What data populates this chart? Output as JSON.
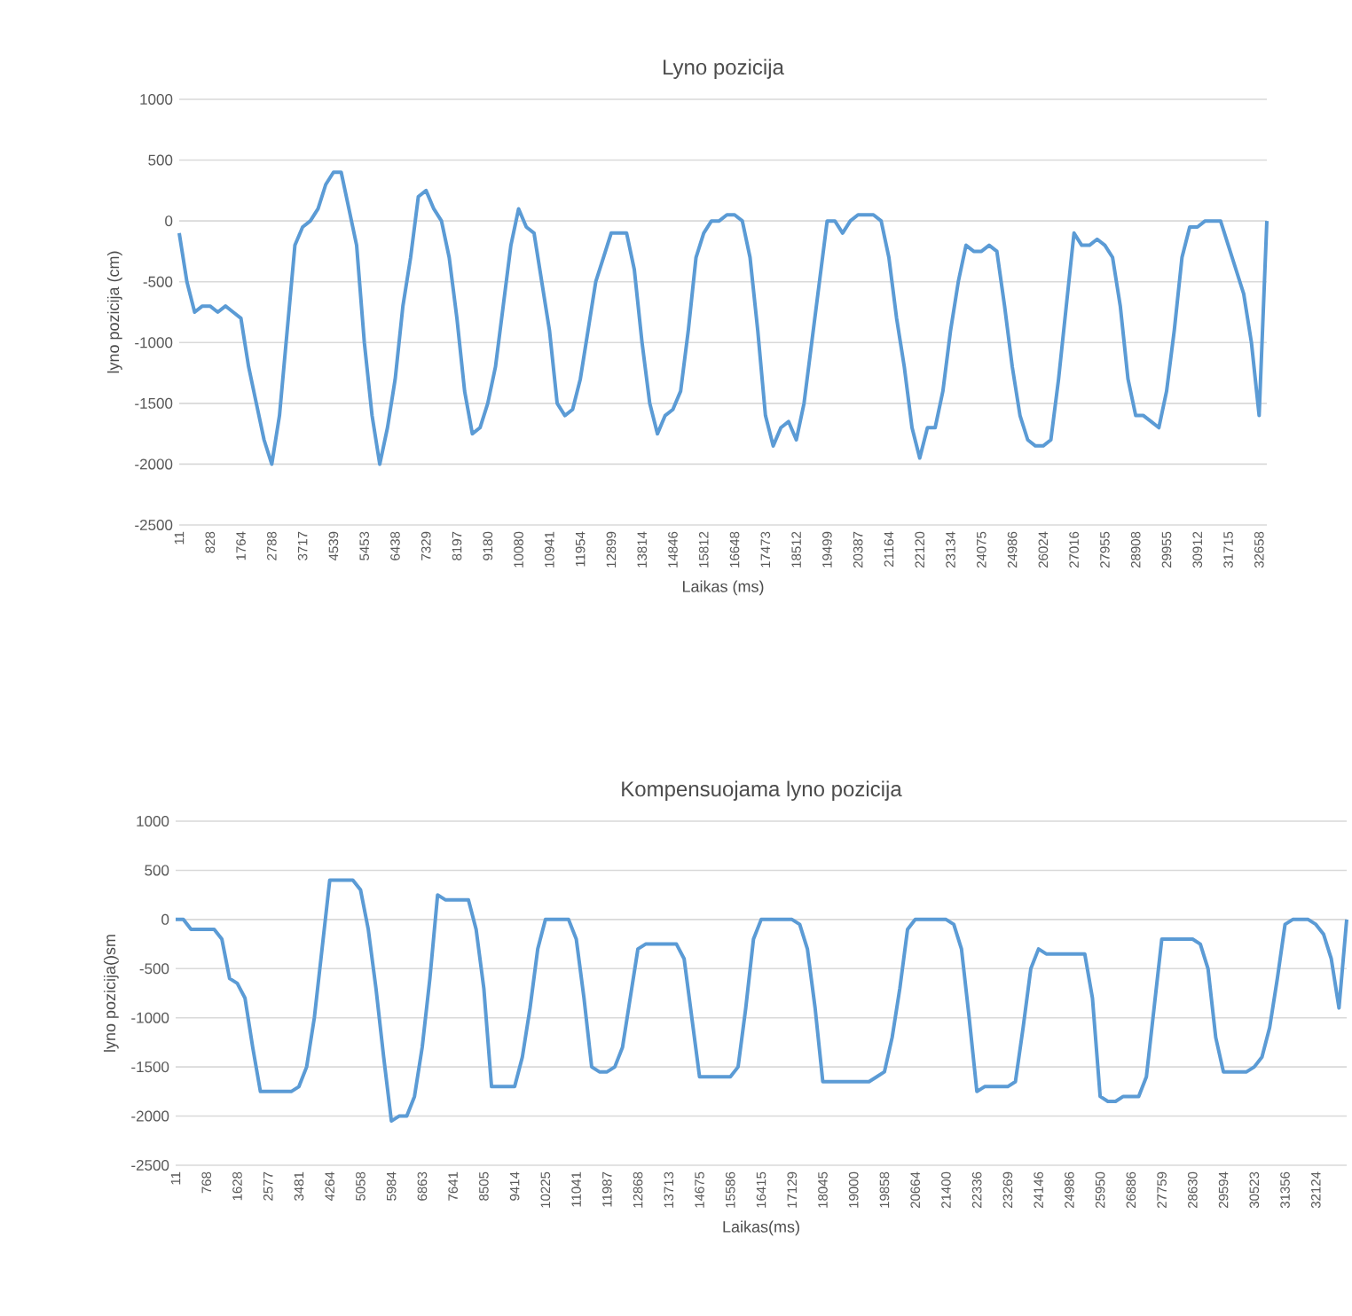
{
  "chart_data": [
    {
      "type": "line",
      "title": "Lyno pozicija",
      "xlabel": "Laikas (ms)",
      "ylabel": "lyno pozicija (cm)",
      "color": "#5b9bd5",
      "grid": "y",
      "ylim": [
        -2500,
        1000
      ],
      "yticks": [
        -2500,
        -2000,
        -1500,
        -1000,
        -500,
        0,
        500,
        1000
      ],
      "categories": [
        "11",
        null,
        null,
        null,
        "828",
        null,
        null,
        null,
        "1764",
        null,
        null,
        null,
        "2788",
        null,
        null,
        null,
        "3717",
        null,
        null,
        null,
        "4539",
        null,
        null,
        null,
        "5453",
        null,
        null,
        null,
        "6438",
        null,
        null,
        null,
        "7329",
        null,
        null,
        null,
        "8197",
        null,
        null,
        null,
        "9180",
        null,
        null,
        null,
        "10080",
        null,
        null,
        null,
        "10941",
        null,
        null,
        null,
        "11954",
        null,
        null,
        null,
        "12899",
        null,
        null,
        null,
        "13814",
        null,
        null,
        null,
        "14846",
        null,
        null,
        null,
        "15812",
        null,
        null,
        null,
        "16648",
        null,
        null,
        null,
        "17473",
        null,
        null,
        null,
        "18512",
        null,
        null,
        null,
        "19499",
        null,
        null,
        null,
        "20387",
        null,
        null,
        null,
        "21164",
        null,
        null,
        null,
        "22120",
        null,
        null,
        null,
        "23134",
        null,
        null,
        null,
        "24075",
        null,
        null,
        null,
        "24986",
        null,
        null,
        null,
        "26024",
        null,
        null,
        null,
        "27016",
        null,
        null,
        null,
        "27955",
        null,
        null,
        null,
        "28908",
        null,
        null,
        null,
        "29955",
        null,
        null,
        null,
        "30912",
        null,
        null,
        null,
        "31715",
        null,
        null,
        null,
        "32658",
        null
      ],
      "values": [
        -100,
        -500,
        -750,
        -700,
        -700,
        -750,
        -700,
        -750,
        -800,
        -1200,
        -1500,
        -1800,
        -2000,
        -1600,
        -900,
        -200,
        -50,
        0,
        100,
        300,
        400,
        400,
        100,
        -200,
        -1000,
        -1600,
        -2000,
        -1700,
        -1300,
        -700,
        -300,
        200,
        250,
        100,
        0,
        -300,
        -800,
        -1400,
        -1750,
        -1700,
        -1500,
        -1200,
        -700,
        -200,
        100,
        -50,
        -100,
        -500,
        -900,
        -1500,
        -1600,
        -1550,
        -1300,
        -900,
        -500,
        -300,
        -100,
        -100,
        -100,
        -400,
        -1000,
        -1500,
        -1750,
        -1600,
        -1550,
        -1400,
        -900,
        -300,
        -100,
        0,
        0,
        50,
        50,
        0,
        -300,
        -900,
        -1600,
        -1850,
        -1700,
        -1650,
        -1800,
        -1500,
        -1000,
        -500,
        0,
        0,
        -100,
        0,
        50,
        50,
        50,
        0,
        -300,
        -800,
        -1200,
        -1700,
        -1950,
        -1700,
        -1700,
        -1400,
        -900,
        -500,
        -200,
        -250,
        -250,
        -200,
        -250,
        -700,
        -1200,
        -1600,
        -1800,
        -1850,
        -1850,
        -1800,
        -1300,
        -700,
        -100,
        -200,
        -200,
        -150,
        -200,
        -300,
        -700,
        -1300,
        -1600,
        -1600,
        -1650,
        -1700,
        -1400,
        -900,
        -300,
        -50,
        -50,
        0,
        0,
        0,
        -200,
        -400,
        -600,
        -1000,
        -1600,
        0
      ]
    },
    {
      "type": "line",
      "title": "Kompensuojama lyno pozicija",
      "xlabel": "Laikas(ms)",
      "ylabel": "lyno pozicija()sm",
      "color": "#5b9bd5",
      "grid": "y",
      "ylim": [
        -2500,
        1000
      ],
      "yticks": [
        -2500,
        -2000,
        -1500,
        -1000,
        -500,
        0,
        500,
        1000
      ],
      "categories": [
        "11",
        null,
        null,
        null,
        "768",
        null,
        null,
        null,
        "1628",
        null,
        null,
        null,
        "2577",
        null,
        null,
        null,
        "3481",
        null,
        null,
        null,
        "4264",
        null,
        null,
        null,
        "5058",
        null,
        null,
        null,
        "5984",
        null,
        null,
        null,
        "6863",
        null,
        null,
        null,
        "7641",
        null,
        null,
        null,
        "8505",
        null,
        null,
        null,
        "9414",
        null,
        null,
        null,
        "10225",
        null,
        null,
        null,
        "11041",
        null,
        null,
        null,
        "11987",
        null,
        null,
        null,
        "12868",
        null,
        null,
        null,
        "13713",
        null,
        null,
        null,
        "14675",
        null,
        null,
        null,
        "15586",
        null,
        null,
        null,
        "16415",
        null,
        null,
        null,
        "17129",
        null,
        null,
        null,
        "18045",
        null,
        null,
        null,
        "19000",
        null,
        null,
        null,
        "19858",
        null,
        null,
        null,
        "20664",
        null,
        null,
        null,
        "21400",
        null,
        null,
        null,
        "22336",
        null,
        null,
        null,
        "23269",
        null,
        null,
        null,
        "24146",
        null,
        null,
        null,
        "24986",
        null,
        null,
        null,
        "25950",
        null,
        null,
        null,
        "26886",
        null,
        null,
        null,
        "27759",
        null,
        null,
        null,
        "28630",
        null,
        null,
        null,
        "29594",
        null,
        null,
        null,
        "30523",
        null,
        null,
        null,
        "31356",
        null,
        null,
        null,
        "32124",
        null,
        null,
        null,
        null
      ],
      "values": [
        0,
        0,
        -100,
        -100,
        -100,
        -100,
        -200,
        -600,
        -650,
        -800,
        -1300,
        -1750,
        -1750,
        -1750,
        -1750,
        -1750,
        -1700,
        -1500,
        -1000,
        -300,
        400,
        400,
        400,
        400,
        300,
        -100,
        -700,
        -1400,
        -2050,
        -2000,
        -2000,
        -1800,
        -1300,
        -600,
        250,
        200,
        200,
        200,
        200,
        -100,
        -700,
        -1700,
        -1700,
        -1700,
        -1700,
        -1400,
        -900,
        -300,
        0,
        0,
        0,
        0,
        -200,
        -800,
        -1500,
        -1550,
        -1550,
        -1500,
        -1300,
        -800,
        -300,
        -250,
        -250,
        -250,
        -250,
        -250,
        -400,
        -1000,
        -1600,
        -1600,
        -1600,
        -1600,
        -1600,
        -1500,
        -900,
        -200,
        0,
        0,
        0,
        0,
        0,
        -50,
        -300,
        -900,
        -1650,
        -1650,
        -1650,
        -1650,
        -1650,
        -1650,
        -1650,
        -1600,
        -1550,
        -1200,
        -700,
        -100,
        0,
        0,
        0,
        0,
        0,
        -50,
        -300,
        -1000,
        -1750,
        -1700,
        -1700,
        -1700,
        -1700,
        -1650,
        -1100,
        -500,
        -300,
        -350,
        -350,
        -350,
        -350,
        -350,
        -350,
        -800,
        -1800,
        -1850,
        -1850,
        -1800,
        -1800,
        -1800,
        -1600,
        -900,
        -200,
        -200,
        -200,
        -200,
        -200,
        -250,
        -500,
        -1200,
        -1550,
        -1550,
        -1550,
        -1550,
        -1500,
        -1400,
        -1100,
        -600,
        -50,
        0,
        0,
        0,
        -50,
        -150,
        -400,
        -900,
        0
      ]
    }
  ]
}
